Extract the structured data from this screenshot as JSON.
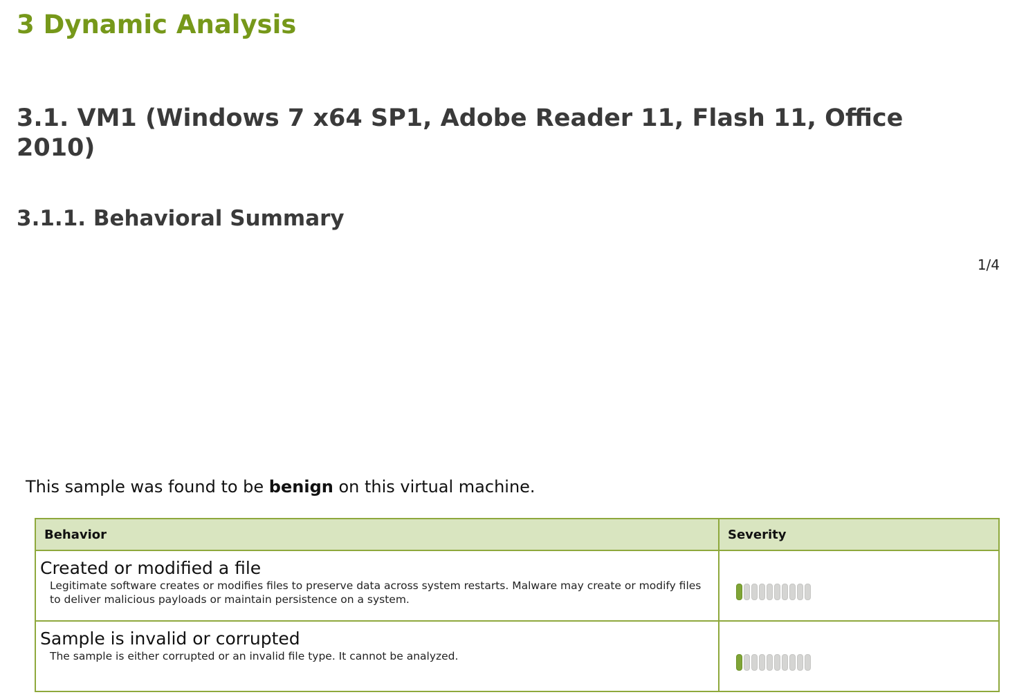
{
  "section": {
    "title": "3 Dynamic Analysis"
  },
  "subsection": {
    "title": "3.1. VM1 (Windows 7 x64 SP1, Adobe Reader 11, Flash 11, Office 2010)"
  },
  "subsubsection": {
    "title": "3.1.1. Behavioral Summary"
  },
  "page_number": "1/4",
  "summary": {
    "prefix": "This sample was found to be ",
    "verdict": "benign",
    "suffix": " on this virtual machine."
  },
  "colors": {
    "heading": "#76981a",
    "table_header_bg": "#d9e5c0",
    "table_border": "#8ea83c",
    "severity_on": "#7fa436",
    "severity_off": "#d5d5d3"
  },
  "table": {
    "headers": [
      "Behavior",
      "Severity"
    ],
    "rows": [
      {
        "name": "Created or modified a file",
        "description": "Legitimate software creates or modifies files to preserve data across system restarts. Malware may create or modify files to deliver malicious payloads or maintain persistence on a system.",
        "severity": 1,
        "severity_max": 10
      },
      {
        "name": "Sample is invalid or corrupted",
        "description": "The sample is either corrupted or an invalid file type. It cannot be analyzed.",
        "severity": 1,
        "severity_max": 10
      }
    ]
  }
}
